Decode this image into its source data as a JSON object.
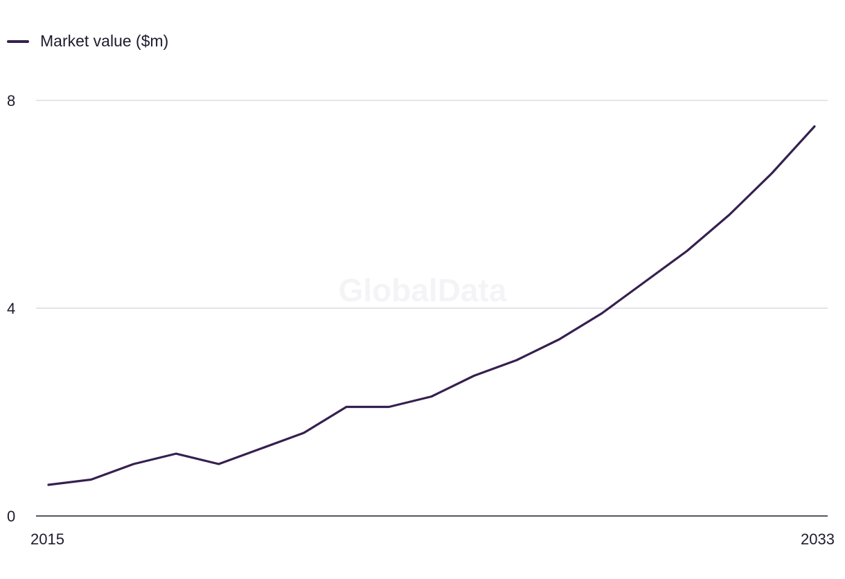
{
  "watermark": "GlobalData",
  "chart_data": {
    "type": "line",
    "series": [
      {
        "name": "Market value ($m)",
        "color": "#35204f",
        "values": [
          0.6,
          0.7,
          1.0,
          1.2,
          1.0,
          1.3,
          1.6,
          2.1,
          2.1,
          2.3,
          2.7,
          3.0,
          3.4,
          3.9,
          4.5,
          5.1,
          5.8,
          6.6,
          7.5
        ]
      }
    ],
    "x": [
      2015,
      2016,
      2017,
      2018,
      2019,
      2020,
      2021,
      2022,
      2023,
      2024,
      2025,
      2026,
      2027,
      2028,
      2029,
      2030,
      2031,
      2032,
      2033
    ],
    "x_tick_labels": [
      "2015",
      "2033"
    ],
    "y_ticks": [
      0,
      4,
      8
    ],
    "y_tick_labels": [
      "0",
      "4",
      "8"
    ],
    "ylim": [
      0,
      8
    ],
    "grid": true,
    "legend_position": "top-left"
  }
}
